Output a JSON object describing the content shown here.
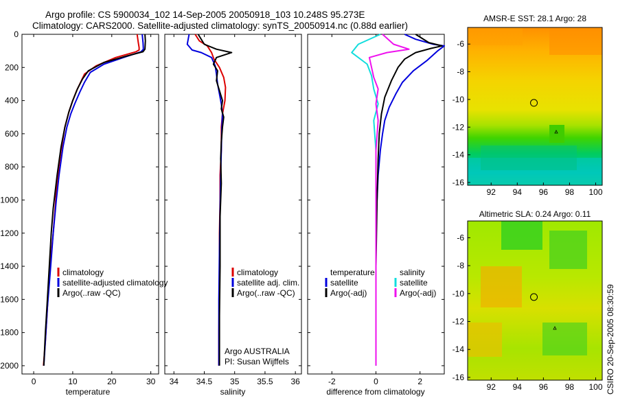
{
  "title_line1": "Argo profile: CS 5900034_102 14-Sep-2005 20050918_103 10.248S 95.273E",
  "title_line2": "Climatology: CARS2000. Satellite-adjusted climatology: synTS_20050914.nc (0.88d earlier)",
  "side_label": "CSIRO 20-Sep-2005 08:30:59",
  "colors": {
    "climatology": "#dd0000",
    "satellite": "#0000dd",
    "argo": "#000000",
    "cyan": "#11dddd",
    "magenta": "#ee11ee"
  },
  "chart_data": [
    {
      "type": "line",
      "id": "temperature",
      "xlabel": "temperature",
      "ylabel": "",
      "xlim": [
        -3,
        32
      ],
      "ylim": [
        2050,
        0
      ],
      "xticks": [
        "0",
        "10",
        "20",
        "30"
      ],
      "yticks": [
        "0",
        "200",
        "400",
        "600",
        "800",
        "1000",
        "1200",
        "1400",
        "1600",
        "1800",
        "2000"
      ],
      "legend": [
        "climatology",
        "satellite-adjusted climatology",
        "Argo(..raw -QC)"
      ],
      "series": [
        {
          "name": "climatology",
          "color_key": "climatology",
          "x": [
            26.5,
            26.8,
            27.0,
            27.0,
            26.2,
            21.0,
            16.0,
            13.0,
            12.0,
            11.0,
            10.0,
            9.0,
            8.0,
            7.0,
            6.0,
            5.5,
            5.0,
            4.0,
            3.5,
            3.0,
            2.5
          ],
          "y": [
            0,
            50,
            80,
            95,
            105,
            140,
            190,
            240,
            290,
            340,
            400,
            470,
            560,
            700,
            880,
            1050,
            1200,
            1450,
            1650,
            1850,
            2000
          ]
        },
        {
          "name": "satellite-adjusted climatology",
          "color_key": "satellite",
          "x": [
            27.8,
            28.0,
            28.1,
            27.5,
            23.0,
            18.0,
            14.5,
            13.0,
            11.8,
            10.5,
            9.5,
            8.5,
            7.5,
            6.5,
            5.8,
            5.0,
            4.2,
            3.5,
            3.0,
            2.6
          ],
          "y": [
            0,
            50,
            90,
            105,
            140,
            180,
            230,
            290,
            350,
            420,
            480,
            560,
            680,
            850,
            1000,
            1200,
            1450,
            1650,
            1850,
            2000
          ]
        },
        {
          "name": "Argo(..raw -QC)",
          "color_key": "argo",
          "x": [
            28.5,
            28.6,
            28.5,
            28.0,
            24.0,
            18.0,
            14.0,
            12.5,
            11.2,
            10.0,
            9.0,
            8.0,
            7.0,
            6.0,
            5.0,
            4.5,
            4.0,
            3.5,
            3.0,
            2.6
          ],
          "y": [
            0,
            40,
            90,
            105,
            130,
            170,
            220,
            270,
            330,
            400,
            470,
            560,
            680,
            850,
            1050,
            1200,
            1400,
            1600,
            1800,
            2000
          ]
        }
      ]
    },
    {
      "type": "line",
      "id": "salinity",
      "xlabel": "salinity",
      "ylabel": "",
      "xlim": [
        33.85,
        36.1
      ],
      "ylim": [
        2050,
        0
      ],
      "xticks": [
        "34",
        "34.5",
        "35",
        "35.5",
        "36"
      ],
      "legend": [
        "climatology",
        "satellite adj. clim.",
        "Argo(..raw -QC)"
      ],
      "annotation": [
        "Argo AUSTRALIA",
        "PI: Susan Wijffels"
      ],
      "series": [
        {
          "name": "climatology",
          "color_key": "climatology",
          "x": [
            34.35,
            34.42,
            34.55,
            34.62,
            34.66,
            34.75,
            34.82,
            34.85,
            34.84,
            34.8,
            34.78,
            34.78,
            34.76,
            34.76,
            34.75,
            34.75,
            34.74,
            34.74
          ],
          "y": [
            0,
            40,
            70,
            110,
            150,
            200,
            260,
            320,
            400,
            480,
            560,
            700,
            850,
            1000,
            1200,
            1500,
            1800,
            2000
          ]
        },
        {
          "name": "satellite adj. clim.",
          "color_key": "satellite",
          "x": [
            34.25,
            34.22,
            34.3,
            34.45,
            34.62,
            34.68,
            34.7,
            34.72,
            34.75,
            34.78,
            34.8,
            34.79,
            34.78,
            34.77,
            34.76,
            34.75,
            34.74,
            34.74
          ],
          "y": [
            0,
            60,
            95,
            110,
            140,
            190,
            240,
            300,
            360,
            420,
            480,
            560,
            700,
            850,
            1050,
            1300,
            1600,
            2000
          ]
        },
        {
          "name": "Argo(..raw -QC)",
          "color_key": "argo",
          "x": [
            34.4,
            34.5,
            34.7,
            34.95,
            34.7,
            34.65,
            34.72,
            34.7,
            34.75,
            34.8,
            34.78,
            34.82,
            34.8,
            34.78,
            34.77,
            34.78,
            34.76,
            34.76,
            34.75,
            34.75
          ],
          "y": [
            0,
            60,
            90,
            110,
            140,
            180,
            220,
            280,
            340,
            400,
            450,
            500,
            560,
            650,
            750,
            900,
            1100,
            1400,
            1700,
            2000
          ]
        }
      ]
    },
    {
      "type": "line",
      "id": "difference",
      "xlabel": "difference from climatology",
      "ylabel": "",
      "xlim": [
        -3.1,
        3.1
      ],
      "ylim": [
        2050,
        0
      ],
      "xticks": [
        "-2",
        "0",
        "2"
      ],
      "legend_headers": [
        "temperature",
        "salinity"
      ],
      "legend": [
        "satellite",
        "Argo(-adj)",
        "satellite",
        "Argo(-adj)"
      ],
      "series": [
        {
          "name": "temperature satellite",
          "color_key": "satellite",
          "x": [
            1.3,
            1.8,
            2.6,
            3.1,
            2.8,
            2.3,
            1.7,
            1.2,
            0.9,
            0.6,
            0.4,
            0.3,
            0.2,
            0.1,
            0.05,
            0.0,
            0.0,
            0.0
          ],
          "y": [
            0,
            30,
            60,
            70,
            100,
            160,
            220,
            290,
            360,
            440,
            520,
            600,
            700,
            850,
            1000,
            1200,
            1600,
            2000
          ]
        },
        {
          "name": "temperature Argo(-adj)",
          "color_key": "argo",
          "x": [
            1.8,
            2.4,
            3.0,
            2.5,
            1.8,
            1.3,
            1.0,
            0.7,
            0.4,
            0.25,
            0.15,
            0.1,
            0.05,
            0.0,
            0.0
          ],
          "y": [
            0,
            50,
            70,
            85,
            110,
            150,
            200,
            280,
            380,
            480,
            600,
            750,
            1000,
            1400,
            2000
          ]
        },
        {
          "name": "salinity satellite",
          "color_key": "cyan",
          "x": [
            0.2,
            -0.8,
            -1.1,
            -0.4,
            -0.2,
            -0.1,
            0.1,
            -0.1,
            0.0,
            0.0,
            0.0
          ],
          "y": [
            0,
            60,
            110,
            180,
            250,
            330,
            420,
            520,
            700,
            1200,
            2000
          ]
        },
        {
          "name": "salinity Argo(-adj)",
          "color_key": "magenta",
          "x": [
            0.3,
            0.8,
            1.5,
            0.5,
            -0.3,
            -0.2,
            -0.1,
            0.1,
            0.0,
            0.1,
            0.0,
            0.0
          ],
          "y": [
            0,
            60,
            90,
            110,
            140,
            200,
            260,
            330,
            420,
            520,
            700,
            2000
          ]
        }
      ]
    },
    {
      "type": "heatmap",
      "id": "sst-map",
      "title": "AMSR-E SST: 28.1 Argo: 28",
      "xlim": [
        90.2,
        100.5
      ],
      "ylim": [
        -16.2,
        -4.8
      ],
      "xticks": [
        "92",
        "94",
        "96",
        "98",
        "100"
      ],
      "yticks": [
        "-6",
        "-8",
        "-10",
        "-12",
        "-14",
        "-16"
      ],
      "marker": {
        "lon": 95.273,
        "lat": -10.248
      }
    },
    {
      "type": "heatmap",
      "id": "sla-map",
      "title": "Altimetric SLA: 0.24 Argo: 0.11",
      "xlim": [
        90.2,
        100.5
      ],
      "ylim": [
        -16.2,
        -4.8
      ],
      "xticks": [
        "92",
        "94",
        "96",
        "98",
        "100"
      ],
      "yticks": [
        "-6",
        "-8",
        "-10",
        "-12",
        "-14",
        "-16"
      ],
      "marker": {
        "lon": 95.273,
        "lat": -10.248
      }
    }
  ]
}
